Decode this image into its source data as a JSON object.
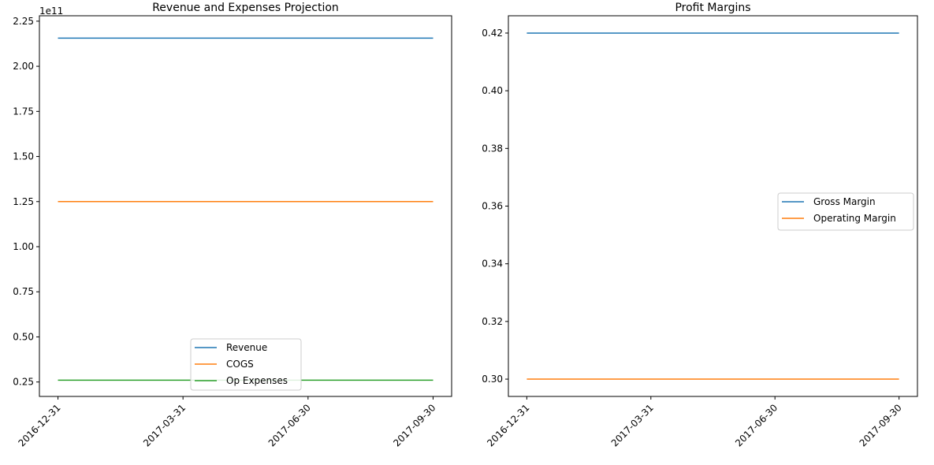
{
  "chart_data": [
    {
      "type": "line",
      "title": "Revenue and Expenses Projection",
      "xlabel": "",
      "ylabel": "",
      "x": [
        "2016-12-31",
        "2017-03-31",
        "2017-06-30",
        "2017-09-30"
      ],
      "x_tick_labels": [
        "2016-12-31",
        "2017-03-31",
        "2017-06-30",
        "2017-09-30"
      ],
      "y_offset_label": "1e11",
      "y_tick_labels": [
        "0.25",
        "0.50",
        "0.75",
        "1.00",
        "1.25",
        "1.50",
        "1.75",
        "2.00",
        "2.25"
      ],
      "y_ticks": [
        25000000000.0,
        50000000000.0,
        75000000000.0,
        100000000000.0,
        125000000000.0,
        150000000000.0,
        175000000000.0,
        200000000000.0,
        225000000000.0
      ],
      "ylim": [
        17000000000.0,
        228000000000.0
      ],
      "grid": false,
      "legend_position": "lower center",
      "series": [
        {
          "name": "Revenue",
          "color": "#1f77b4",
          "values": [
            215600000000,
            215600000000,
            215600000000,
            215600000000
          ]
        },
        {
          "name": "COGS",
          "color": "#ff7f0e",
          "values": [
            125000000000,
            125000000000,
            125000000000,
            125000000000
          ]
        },
        {
          "name": "Op Expenses",
          "color": "#2ca02c",
          "values": [
            26000000000,
            26000000000,
            26000000000,
            26000000000
          ]
        }
      ]
    },
    {
      "type": "line",
      "title": "Profit Margins",
      "xlabel": "",
      "ylabel": "",
      "x": [
        "2016-12-31",
        "2017-03-31",
        "2017-06-30",
        "2017-09-30"
      ],
      "x_tick_labels": [
        "2016-12-31",
        "2017-03-31",
        "2017-06-30",
        "2017-09-30"
      ],
      "y_tick_labels": [
        "0.30",
        "0.32",
        "0.34",
        "0.36",
        "0.38",
        "0.40",
        "0.42"
      ],
      "y_ticks": [
        0.3,
        0.32,
        0.34,
        0.36,
        0.38,
        0.4,
        0.42
      ],
      "ylim": [
        0.294,
        0.426
      ],
      "grid": false,
      "legend_position": "center right",
      "series": [
        {
          "name": "Gross Margin",
          "color": "#1f77b4",
          "values": [
            0.42,
            0.42,
            0.42,
            0.42
          ]
        },
        {
          "name": "Operating Margin",
          "color": "#ff7f0e",
          "values": [
            0.3,
            0.3,
            0.3,
            0.3
          ]
        }
      ]
    }
  ]
}
